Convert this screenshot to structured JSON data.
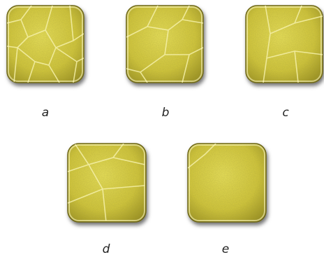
{
  "panels": [
    {
      "label": "a"
    },
    {
      "label": "b"
    },
    {
      "label": "c"
    },
    {
      "label": "d"
    },
    {
      "label": "e"
    }
  ]
}
